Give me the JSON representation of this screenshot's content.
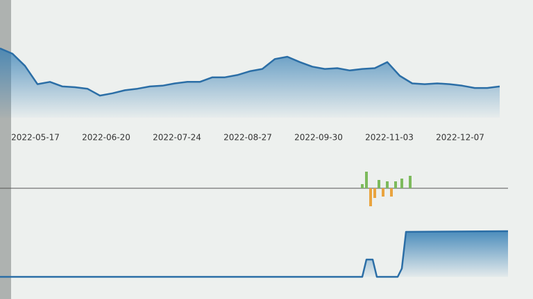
{
  "chart_data": [
    {
      "type": "area",
      "x": [
        "2022-04-30",
        "2022-05-06",
        "2022-05-12",
        "2022-05-18",
        "2022-05-24",
        "2022-05-30",
        "2022-06-05",
        "2022-06-11",
        "2022-06-17",
        "2022-06-23",
        "2022-06-29",
        "2022-07-05",
        "2022-07-11",
        "2022-07-17",
        "2022-07-23",
        "2022-07-29",
        "2022-08-04",
        "2022-08-10",
        "2022-08-16",
        "2022-08-22",
        "2022-08-28",
        "2022-09-03",
        "2022-09-09",
        "2022-09-15",
        "2022-09-21",
        "2022-09-27",
        "2022-10-03",
        "2022-10-09",
        "2022-10-15",
        "2022-10-21",
        "2022-10-27",
        "2022-11-02",
        "2022-11-08",
        "2022-11-14",
        "2022-11-20",
        "2022-11-26",
        "2022-12-02",
        "2022-12-08",
        "2022-12-14",
        "2022-12-20",
        "2022-12-26"
      ],
      "values": [
        91,
        84,
        68,
        44,
        47,
        41,
        40,
        38,
        29,
        32,
        36,
        38,
        41,
        42,
        45,
        47,
        47,
        53,
        53,
        56,
        61,
        64,
        77,
        80,
        73,
        67,
        64,
        65,
        62,
        64,
        65,
        73,
        55,
        45,
        44,
        45,
        44,
        42,
        39,
        39,
        41
      ],
      "color": "#2b6ea6",
      "xlim": [
        "2022-04-30",
        "2022-12-30"
      ],
      "ylim": [
        0,
        100
      ],
      "xticks": [
        "2022-05-17",
        "2022-06-20",
        "2022-07-24",
        "2022-08-27",
        "2022-09-30",
        "2022-11-03",
        "2022-12-07"
      ]
    },
    {
      "type": "bar",
      "x": [
        "2022-10-21",
        "2022-10-23",
        "2022-10-25",
        "2022-10-27",
        "2022-10-29",
        "2022-10-31",
        "2022-11-02",
        "2022-11-04",
        "2022-11-06",
        "2022-11-09",
        "2022-11-13"
      ],
      "values": [
        6,
        24,
        -26,
        -14,
        12,
        -12,
        10,
        -12,
        10,
        14,
        18
      ],
      "positive_color": "#7dba5c",
      "negative_color": "#e9a43f",
      "xlim": [
        "2022-04-30",
        "2022-12-30"
      ],
      "ylim": [
        -30,
        30
      ]
    },
    {
      "type": "step",
      "x": [
        "2022-04-30",
        "2022-10-21",
        "2022-10-23",
        "2022-10-26",
        "2022-10-28",
        "2022-11-07",
        "2022-11-09",
        "2022-11-11",
        "2022-12-30"
      ],
      "values": [
        0,
        0,
        25,
        25,
        0,
        0,
        12,
        65,
        66
      ],
      "color": "#2b6ea6",
      "xlim": [
        "2022-04-30",
        "2022-12-30"
      ],
      "ylim": [
        0,
        80
      ]
    }
  ]
}
